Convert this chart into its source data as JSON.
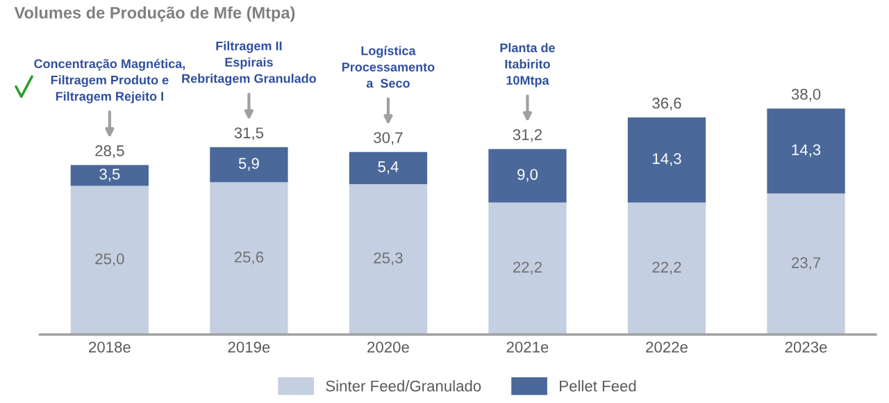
{
  "chart_data": {
    "type": "bar",
    "title": "Volumes de Produção de Mfe (Mtpa)",
    "categories": [
      "2018e",
      "2019e",
      "2020e",
      "2021e",
      "2022e",
      "2023e"
    ],
    "stacked": true,
    "tick_labels": "x",
    "grid": false,
    "legend": "bottom",
    "series": [
      {
        "name": "Sinter Feed/Granulado",
        "color": "#c5cfe2",
        "values": [
          25.0,
          25.6,
          25.3,
          22.2,
          22.2,
          23.7
        ],
        "value_labels": [
          "25,0",
          "25,6",
          "25,3",
          "22,2",
          "22,2",
          "23,7"
        ]
      },
      {
        "name": "Pellet Feed",
        "color": "#4a6899",
        "values": [
          3.5,
          5.9,
          5.4,
          9.0,
          14.3,
          14.3
        ],
        "value_labels": [
          "3,5",
          "5,9",
          "5,4",
          "9,0",
          "14,3",
          "14,3"
        ]
      }
    ],
    "totals": [
      "28,5",
      "31,5",
      "30,7",
      "31,2",
      "36,6",
      "38,0"
    ],
    "annotations": [
      "Concentração Magnética,\nFiltragem Produto e\nFiltragem Rejeito I",
      "Filtragem II\nEspirais\nRebritagem Granulado",
      "Logística\nProcessamento\na  Seco",
      "Planta de\nItabirito\n10Mtpa"
    ]
  }
}
